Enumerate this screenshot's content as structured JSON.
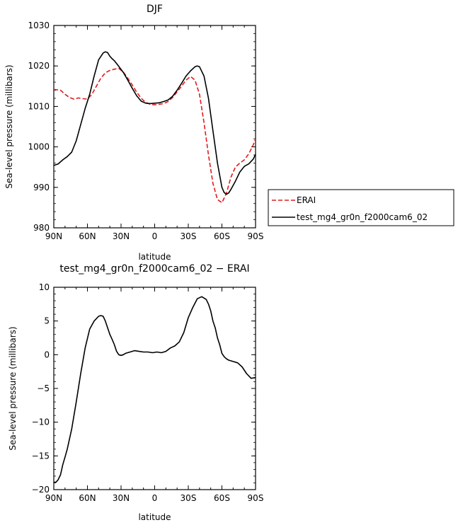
{
  "chart_data": [
    {
      "type": "line",
      "title": "DJF",
      "xlabel": "latitude",
      "ylabel": "Sea-level pressure (millibars)",
      "xlim": [
        90,
        -90
      ],
      "ylim": [
        980,
        1030
      ],
      "xticks": [
        90,
        60,
        30,
        0,
        -30,
        -60,
        -90
      ],
      "xtick_labels": [
        "90N",
        "60N",
        "30N",
        "0",
        "30S",
        "60S",
        "90S"
      ],
      "yticks": [
        980,
        990,
        1000,
        1010,
        1020,
        1030
      ],
      "ytick_labels": [
        "980",
        "990",
        "1000",
        "1010",
        "1020",
        "1030"
      ],
      "legend": "right",
      "series": [
        {
          "name": "ERAI",
          "color": "#e41a1c",
          "style": "dashed",
          "x": [
            90,
            84,
            80,
            76,
            72,
            68,
            64,
            60,
            56,
            52,
            48,
            44,
            40,
            36,
            32,
            28,
            24,
            20,
            16,
            12,
            8,
            4,
            0,
            -4,
            -8,
            -12,
            -16,
            -20,
            -24,
            -28,
            -32,
            -36,
            -40,
            -44,
            -48,
            -52,
            -56,
            -60,
            -64,
            -66,
            -68,
            -72,
            -76,
            -80,
            -84,
            -88,
            -90
          ],
          "y": [
            1014.2,
            1014.0,
            1013.0,
            1012.2,
            1011.8,
            1012.1,
            1011.9,
            1011.8,
            1013.0,
            1015.0,
            1017.0,
            1018.3,
            1018.9,
            1019.2,
            1019.4,
            1018.5,
            1017.0,
            1015.3,
            1013.5,
            1012.0,
            1011.0,
            1010.5,
            1010.4,
            1010.5,
            1010.7,
            1011.2,
            1012.2,
            1013.6,
            1015.0,
            1016.5,
            1017.4,
            1016.5,
            1013.0,
            1006.0,
            998.0,
            991.0,
            987.0,
            986.2,
            988.5,
            990.5,
            992.5,
            995.0,
            996.0,
            996.8,
            998.3,
            1000.5,
            1002.0
          ]
        },
        {
          "name": "test_mg4_gr0n_f2000cam6_02",
          "color": "#000000",
          "style": "solid",
          "x": [
            90,
            86,
            82,
            78,
            74,
            70,
            66,
            62,
            58,
            54,
            50,
            46,
            44,
            42,
            40,
            38,
            36,
            32,
            28,
            24,
            20,
            16,
            12,
            8,
            4,
            0,
            -4,
            -8,
            -12,
            -16,
            -20,
            -24,
            -28,
            -32,
            -36,
            -38,
            -40,
            -44,
            -48,
            -52,
            -56,
            -60,
            -62,
            -64,
            -66,
            -68,
            -72,
            -76,
            -80,
            -84,
            -88,
            -90
          ],
          "y": [
            995.4,
            995.8,
            996.8,
            997.6,
            998.7,
            1001.5,
            1005.5,
            1009.5,
            1013.0,
            1017.5,
            1021.5,
            1023.2,
            1023.5,
            1023.3,
            1022.4,
            1021.8,
            1021.3,
            1019.9,
            1018.4,
            1016.5,
            1014.5,
            1012.6,
            1011.3,
            1010.8,
            1010.7,
            1010.8,
            1010.9,
            1011.2,
            1011.6,
            1012.5,
            1014.0,
            1015.7,
            1017.5,
            1018.8,
            1019.8,
            1020.0,
            1019.8,
            1017.5,
            1012.0,
            1004.0,
            996.0,
            990.0,
            988.7,
            988.3,
            988.6,
            989.5,
            991.5,
            993.8,
            995.2,
            995.8,
            997.0,
            998.2
          ]
        }
      ]
    },
    {
      "type": "line",
      "title": "test_mg4_gr0n_f2000cam6_02 − ERAI",
      "xlabel": "latitude",
      "ylabel": "Sea-level pressure (millibars)",
      "xlim": [
        90,
        -90
      ],
      "ylim": [
        -20,
        10
      ],
      "xticks": [
        90,
        60,
        30,
        0,
        -30,
        -60,
        -90
      ],
      "xtick_labels": [
        "90N",
        "60N",
        "30N",
        "0",
        "30S",
        "60S",
        "90S"
      ],
      "yticks": [
        -20,
        -15,
        -10,
        -5,
        0,
        5,
        10
      ],
      "ytick_labels": [
        "−20",
        "−15",
        "−10",
        "−5",
        "0",
        "5",
        "10"
      ],
      "series": [
        {
          "name": "",
          "color": "#000000",
          "style": "solid",
          "x": [
            90,
            88,
            86,
            84,
            82,
            80,
            78,
            74,
            70,
            66,
            62,
            58,
            54,
            50,
            48,
            46,
            44,
            42,
            40,
            38,
            36,
            34,
            32,
            30,
            28,
            26,
            22,
            18,
            14,
            10,
            6,
            2,
            -2,
            -6,
            -10,
            -14,
            -18,
            -22,
            -26,
            -30,
            -34,
            -38,
            -42,
            -46,
            -48,
            -50,
            -52,
            -54,
            -56,
            -58,
            -60,
            -62,
            -64,
            -66,
            -70,
            -74,
            -78,
            -82,
            -86,
            -90
          ],
          "y": [
            -18.9,
            -18.9,
            -18.5,
            -17.8,
            -16.3,
            -15.2,
            -14.0,
            -11.0,
            -7.0,
            -2.8,
            1.0,
            3.8,
            5.0,
            5.7,
            5.8,
            5.7,
            5.0,
            4.0,
            3.0,
            2.3,
            1.5,
            0.5,
            0.0,
            -0.1,
            0.0,
            0.2,
            0.4,
            0.6,
            0.5,
            0.4,
            0.4,
            0.3,
            0.4,
            0.3,
            0.5,
            1.0,
            1.3,
            1.9,
            3.3,
            5.5,
            7.0,
            8.3,
            8.6,
            8.2,
            7.5,
            6.5,
            5.0,
            4.0,
            2.5,
            1.5,
            0.2,
            -0.3,
            -0.6,
            -0.8,
            -1.0,
            -1.2,
            -1.8,
            -2.8,
            -3.5,
            -3.4
          ]
        }
      ]
    }
  ]
}
